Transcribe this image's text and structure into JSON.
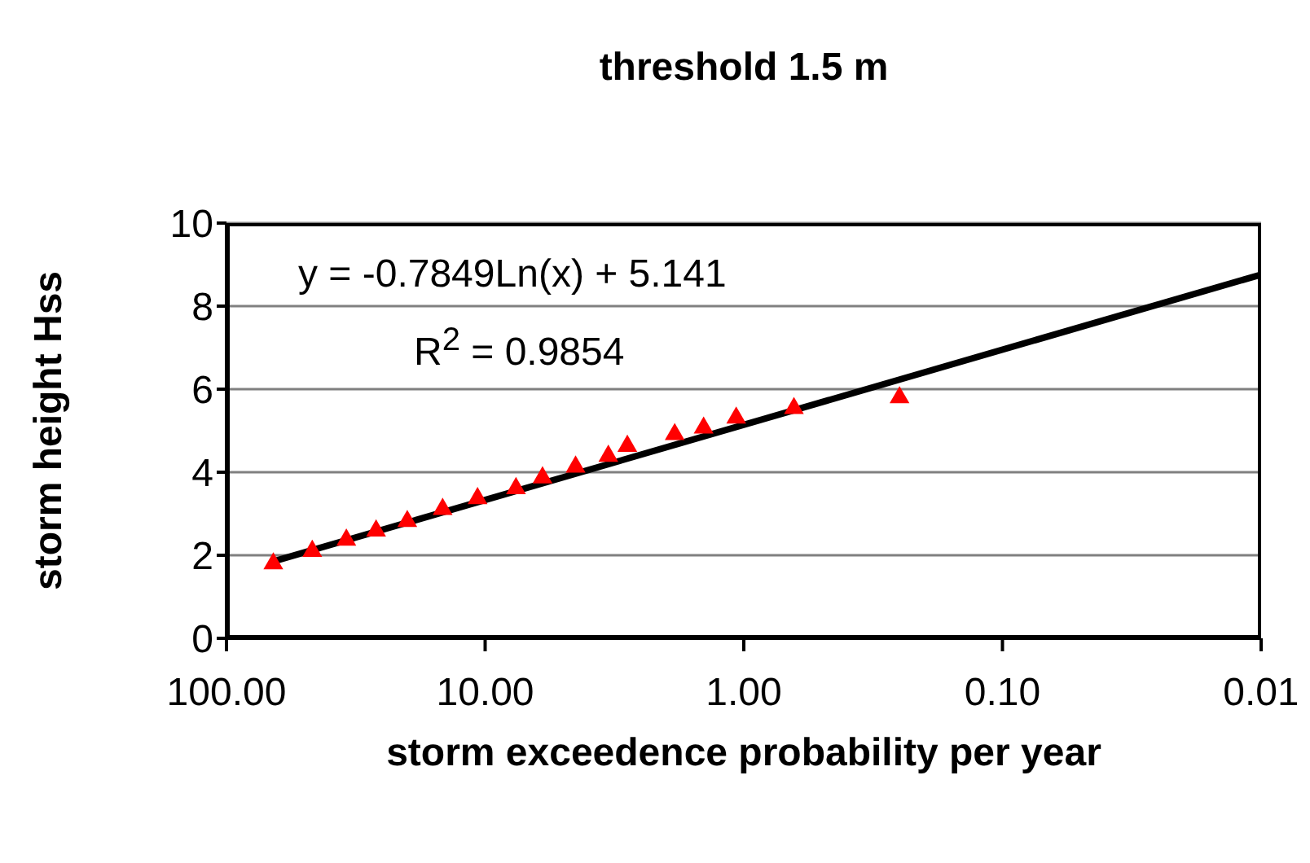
{
  "chart_data": {
    "type": "scatter",
    "title": "threshold 1.5 m",
    "xlabel": "storm exceedence probability per year",
    "ylabel": "storm height Hss",
    "log": "x",
    "grid": "y",
    "xlim": [
      100,
      0.01
    ],
    "xticks": [
      {
        "value": 100,
        "label": "100.00"
      },
      {
        "value": 10,
        "label": "10.00"
      },
      {
        "value": 1,
        "label": "1.00"
      },
      {
        "value": 0.1,
        "label": "0.10"
      },
      {
        "value": 0.01,
        "label": "0.01"
      }
    ],
    "ylim": [
      0,
      10
    ],
    "yticks": [
      0,
      2,
      4,
      6,
      8,
      10
    ],
    "annotations": [
      "y = -0.7849Ln(x) + 5.141",
      "R$^{2}$ = 0.9854"
    ],
    "series": [
      {
        "color": "#ff0000",
        "marker": "triangle",
        "x": [
          65.9,
          46.6,
          34.4,
          26.4,
          20.0,
          14.6,
          10.7,
          7.6,
          6.0,
          4.47,
          3.34,
          2.82,
          1.85,
          1.43,
          1.07,
          0.64,
          0.25
        ],
        "values": [
          1.8,
          2.1,
          2.37,
          2.59,
          2.82,
          3.11,
          3.37,
          3.61,
          3.87,
          4.13,
          4.39,
          4.63,
          4.91,
          5.07,
          5.31,
          5.54,
          5.8
        ]
      },
      {
        "type": "line",
        "color": "#000000",
        "marker": "none",
        "line_style": "solid",
        "x": [
          66,
          0.01
        ],
        "values": [
          1.85,
          8.76
        ]
      }
    ]
  }
}
